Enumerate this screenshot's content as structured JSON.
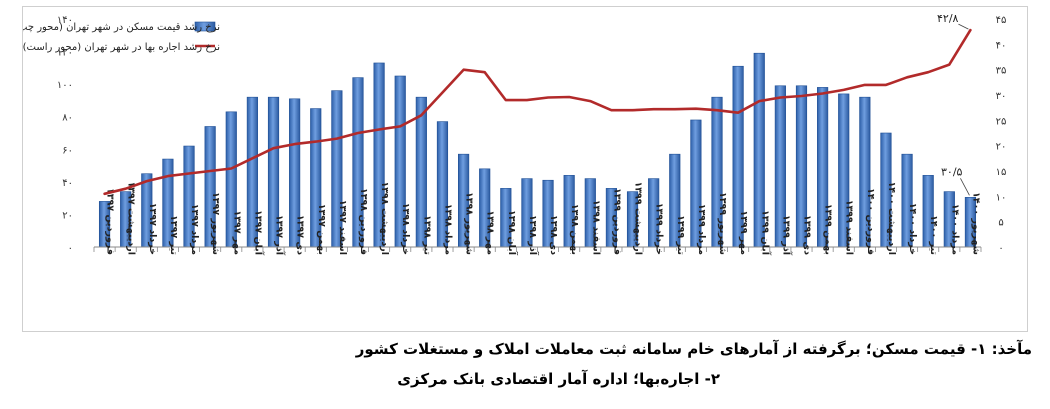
{
  "chart_data": {
    "type": "bar+line",
    "categories": [
      "فروردین ۱۳۹۷",
      "اردیبهشت ۱۳۹۷",
      "خرداد ۱۳۹۷",
      "تیر ۱۳۹۷",
      "مرداد ۱۳۹۷",
      "شهریور ۱۳۹۷",
      "مهر ۱۳۹۷",
      "آبان ۱۳۹۷",
      "آذر ۱۳۹۷",
      "دی ۱۳۹۷",
      "بهمن ۱۳۹۷",
      "اسفند ۱۳۹۷",
      "فروردین ۱۳۹۸",
      "اردیبهشت ۱۳۹۸",
      "خرداد ۱۳۹۸",
      "تیر ۱۳۹۸",
      "مرداد ۱۳۹۸",
      "شهریور ۱۳۹۸",
      "مهر ۱۳۹۸",
      "آبان ۱۳۹۸",
      "آذر ۱۳۹۸",
      "دی ۱۳۹۸",
      "بهمن ۱۳۹۸",
      "اسفند ۱۳۹۸",
      "فروردین ۱۳۹۹",
      "اردیبهشت ۱۳۹۹",
      "خرداد ۱۳۹۹",
      "تیر ۱۳۹۹",
      "مرداد ۱۳۹۹",
      "شهریور ۱۳۹۹",
      "مهر ۱۳۹۹",
      "آبان ۱۳۹۹",
      "آذر ۱۳۹۹",
      "دی ۱۳۹۹",
      "بهمن ۱۳۹۹",
      "اسفند ۱۳۹۹",
      "فروردین ۱۴۰۰",
      "اردیبهشت ۱۴۰۰",
      "خرداد ۱۴۰۰",
      "تیر ۱۴۰۰",
      "مرداد ۱۴۰۰",
      "شهریور ۱۴۰۰"
    ],
    "series": [
      {
        "name": "نرخ رشد قیمت مسکن در شهر تهران (محور چپ)",
        "type": "bar",
        "axis": "left",
        "color": "#3a6db5",
        "values": [
          28,
          34,
          45,
          54,
          62,
          74,
          83,
          92,
          92,
          91,
          85,
          96,
          104,
          113,
          105,
          92,
          77,
          57,
          48,
          36,
          42,
          41,
          44,
          42,
          36,
          34,
          42,
          57,
          78,
          92,
          111,
          119,
          99,
          99,
          98,
          94,
          92,
          70,
          57,
          44,
          34,
          30.5
        ]
      },
      {
        "name": "نرخ رشد اجاره بها در شهر تهران (محور راست)",
        "type": "line",
        "axis": "right",
        "color": "#b22a2a",
        "values": [
          10.5,
          11.5,
          13,
          14,
          14.5,
          15,
          15.5,
          17.5,
          19.5,
          20.3,
          20.8,
          21.4,
          22.5,
          23.2,
          23.8,
          26,
          30.5,
          35,
          34.5,
          29,
          29,
          29.5,
          29.6,
          28.8,
          27,
          27,
          27.2,
          27.2,
          27.3,
          27,
          26.5,
          28.8,
          29.5,
          29.8,
          30.3,
          31,
          32,
          32,
          33.5,
          34.5,
          36,
          42.8
        ]
      }
    ],
    "y_left": {
      "min": 0,
      "max": 140,
      "ticks": [
        "۰",
        "۲۰",
        "۴۰",
        "۶۰",
        "۸۰",
        "۱۰۰",
        "۱۲۰",
        "۱۴۰"
      ]
    },
    "y_right": {
      "min": 0,
      "max": 45,
      "ticks": [
        "۰",
        "۵",
        "۱۰",
        "۱۵",
        "۲۰",
        "۲۵",
        "۳۰",
        "۳۵",
        "۴۰",
        "۴۵"
      ]
    },
    "annotations": [
      {
        "text": "۴۲/۸",
        "series": 1,
        "index": 41
      },
      {
        "text": "۳۰/۵",
        "series": 0,
        "index": 41
      }
    ],
    "legend_position": "top-left",
    "grid": false
  },
  "source": {
    "line1": "مآخذ: ۱- قیمت مسکن؛ برگرفته از آمارهای خام سامانه ثبت معاملات املاک و مستغلات کشور",
    "line2": "۲- اجاره‌بها؛ اداره آمار اقتصادی بانک مرکزی"
  }
}
